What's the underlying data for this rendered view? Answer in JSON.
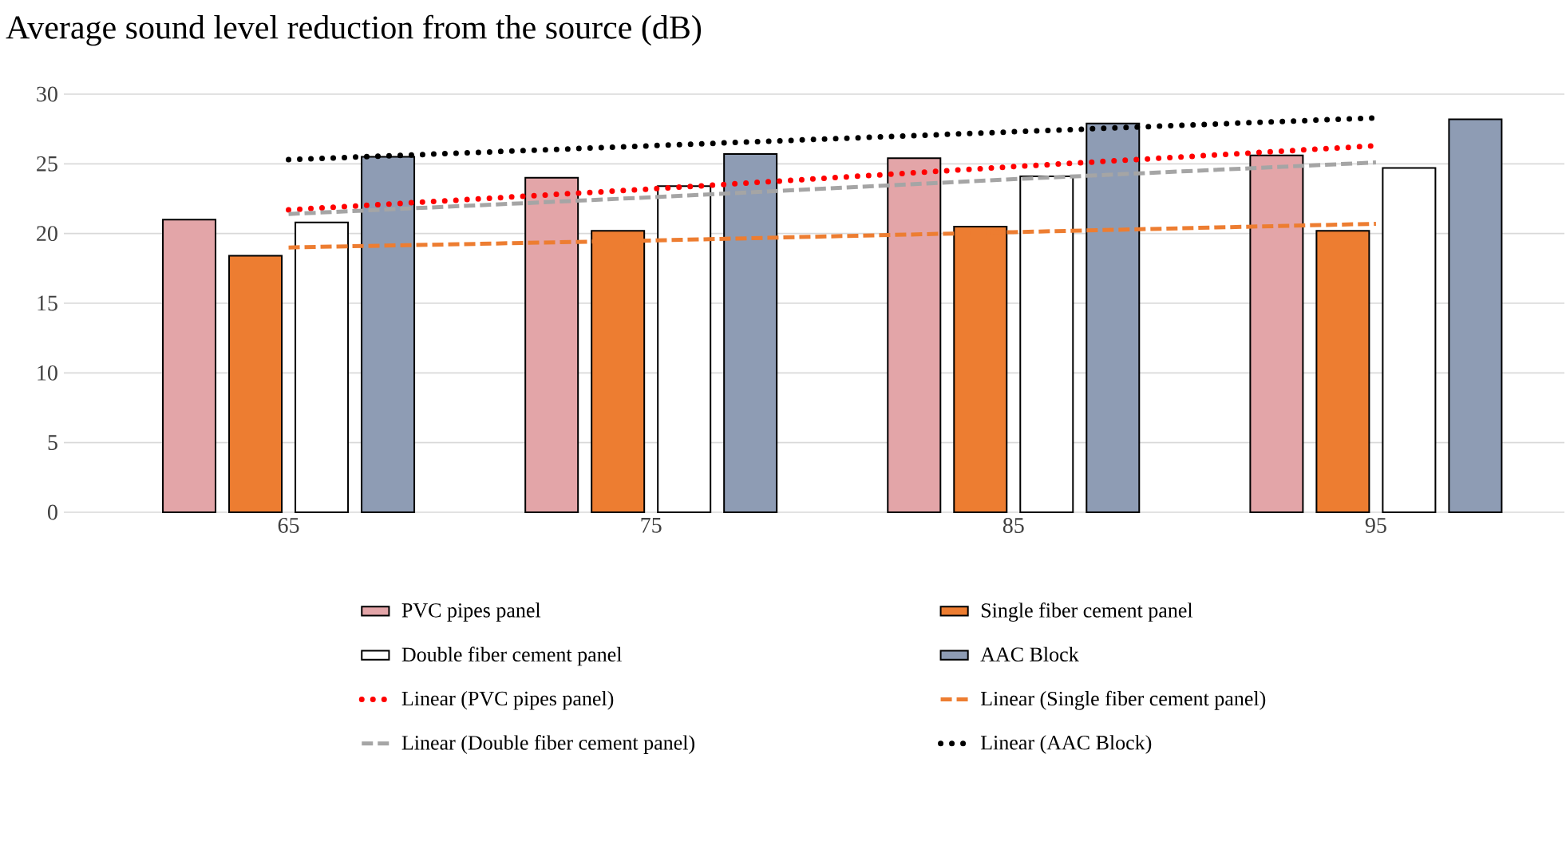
{
  "chart_data": {
    "type": "bar",
    "title": "Average sound level reduction from the source (dB)",
    "categories": [
      "65",
      "75",
      "85",
      "95"
    ],
    "series": [
      {
        "name": "PVC pipes panel",
        "color": "#e3a5a8",
        "values": [
          21.0,
          24.0,
          25.4,
          25.6
        ]
      },
      {
        "name": "Single fiber cement panel",
        "color": "#ed7d31",
        "values": [
          18.4,
          20.2,
          20.5,
          20.2
        ]
      },
      {
        "name": "Double fiber cement panel",
        "color": "#ffffff",
        "values": [
          20.8,
          23.4,
          24.1,
          24.7
        ]
      },
      {
        "name": "AAC Block",
        "color": "#8e9cb4",
        "values": [
          25.5,
          25.7,
          27.9,
          28.2
        ]
      },
      {
        "name": "Linear (PVC pipes panel)",
        "type": "line",
        "line_style": "dotted",
        "color": "#ff0000",
        "values": [
          21.7,
          23.2,
          24.8,
          26.3
        ]
      },
      {
        "name": "Linear (Single fiber cement panel)",
        "type": "line",
        "line_style": "dashed",
        "color": "#ed7d31",
        "values": [
          19.0,
          19.5,
          20.1,
          20.7
        ]
      },
      {
        "name": "Linear (Double fiber cement panel)",
        "type": "line",
        "line_style": "dashed",
        "color": "#a5a5a5",
        "values": [
          21.4,
          22.6,
          23.9,
          25.1
        ]
      },
      {
        "name": "Linear (AAC Block)",
        "type": "line",
        "line_style": "dotted",
        "color": "#000000",
        "values": [
          25.3,
          26.3,
          27.3,
          28.3
        ]
      }
    ],
    "ylim": [
      0,
      30
    ],
    "yticks": [
      0,
      5,
      10,
      15,
      20,
      25,
      30
    ],
    "grid": "y",
    "legend": "bottom",
    "marker": "none"
  }
}
